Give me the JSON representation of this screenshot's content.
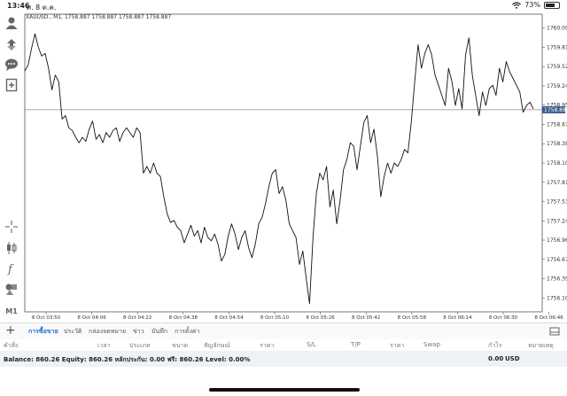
{
  "status": {
    "time": "13:46",
    "date": "ศ. 8 ต.ค.",
    "battery": "73%",
    "battery_level": 0.73
  },
  "chart": {
    "symbol_info": "XAUUSD., M1, 1758.887 1758.887 1758.887 1758.887",
    "current_price": "1758.887",
    "price_labels": [
      "1760.095",
      "1759.810",
      "1759.525",
      "1759.240",
      "1758.955",
      "1758.670",
      "1758.385",
      "1758.100",
      "1757.815",
      "1757.530",
      "1757.245",
      "1756.960",
      "1756.675",
      "1756.390",
      "1756.105"
    ],
    "time_labels": [
      "8 Oct 03:50",
      "8 Oct 04:06",
      "8 Oct 04:22",
      "8 Oct 04:38",
      "8 Oct 04:54",
      "8 Oct 05:10",
      "8 Oct 05:26",
      "8 Oct 05:42",
      "8 Oct 05:58",
      "8 Oct 06:14",
      "8 Oct 06:30",
      "8 Oct 06:46"
    ]
  },
  "chart_data": {
    "type": "line",
    "symbol": "XAUUSD.",
    "timeframe": "M1",
    "ylim": [
      1755.9,
      1760.3
    ],
    "current_price": 1758.887,
    "values": [
      1759.46,
      1759.55,
      1759.8,
      1760.01,
      1759.81,
      1759.68,
      1759.72,
      1759.5,
      1759.18,
      1759.4,
      1759.3,
      1758.75,
      1758.8,
      1758.62,
      1758.58,
      1758.48,
      1758.4,
      1758.48,
      1758.42,
      1758.6,
      1758.72,
      1758.45,
      1758.52,
      1758.4,
      1758.55,
      1758.48,
      1758.58,
      1758.62,
      1758.42,
      1758.55,
      1758.62,
      1758.55,
      1758.48,
      1758.62,
      1758.55,
      1757.95,
      1758.05,
      1757.95,
      1758.1,
      1757.95,
      1757.9,
      1757.6,
      1757.35,
      1757.22,
      1757.25,
      1757.15,
      1757.1,
      1756.92,
      1757.05,
      1757.18,
      1757.02,
      1757.1,
      1756.92,
      1757.15,
      1757.0,
      1756.95,
      1757.05,
      1756.9,
      1756.65,
      1756.75,
      1757.02,
      1757.2,
      1757.05,
      1756.82,
      1757.0,
      1757.1,
      1756.85,
      1756.7,
      1756.9,
      1757.2,
      1757.3,
      1757.5,
      1757.75,
      1757.95,
      1758.0,
      1757.65,
      1757.75,
      1757.55,
      1757.2,
      1757.1,
      1757.0,
      1756.6,
      1756.8,
      1756.4,
      1756.02,
      1757.0,
      1757.65,
      1757.95,
      1757.85,
      1758.05,
      1757.45,
      1757.7,
      1757.2,
      1757.55,
      1758.0,
      1758.15,
      1758.4,
      1758.35,
      1758.0,
      1758.35,
      1758.7,
      1758.8,
      1758.4,
      1758.6,
      1758.2,
      1757.6,
      1757.9,
      1758.1,
      1757.95,
      1758.1,
      1758.05,
      1758.15,
      1758.3,
      1758.25,
      1758.7,
      1759.3,
      1759.85,
      1759.5,
      1759.72,
      1759.85,
      1759.7,
      1759.4,
      1759.25,
      1759.1,
      1758.95,
      1759.5,
      1759.3,
      1758.95,
      1759.2,
      1758.9,
      1759.7,
      1759.95,
      1759.4,
      1759.1,
      1758.8,
      1759.15,
      1758.95,
      1759.2,
      1759.25,
      1759.1,
      1759.5,
      1759.3,
      1759.6,
      1759.45,
      1759.35,
      1759.25,
      1759.15,
      1758.85,
      1758.95,
      1759.0,
      1758.9
    ]
  },
  "tabs": [
    "การซื้อขาย",
    "ประวัติ",
    "กล่องจดหมาย",
    "ข่าว",
    "บันทึก",
    "การตั้งค่า"
  ],
  "columns": [
    "คำสั่ง",
    "เวลา",
    "ประเภท",
    "ขนาด",
    "สัญลักษณ์",
    "ราคา",
    "S/L",
    "T/P",
    "ราคา",
    "Swap",
    "กำไร",
    "หมายเหตุ"
  ],
  "balance_text": "Balance: 860.26 Equity: 860.26 หลักประกัน: 0.00 ฟรี: 860.26 Level: 0.00%",
  "profit": "0.00",
  "currency": "USD",
  "toolbar_label_m1": "M1"
}
